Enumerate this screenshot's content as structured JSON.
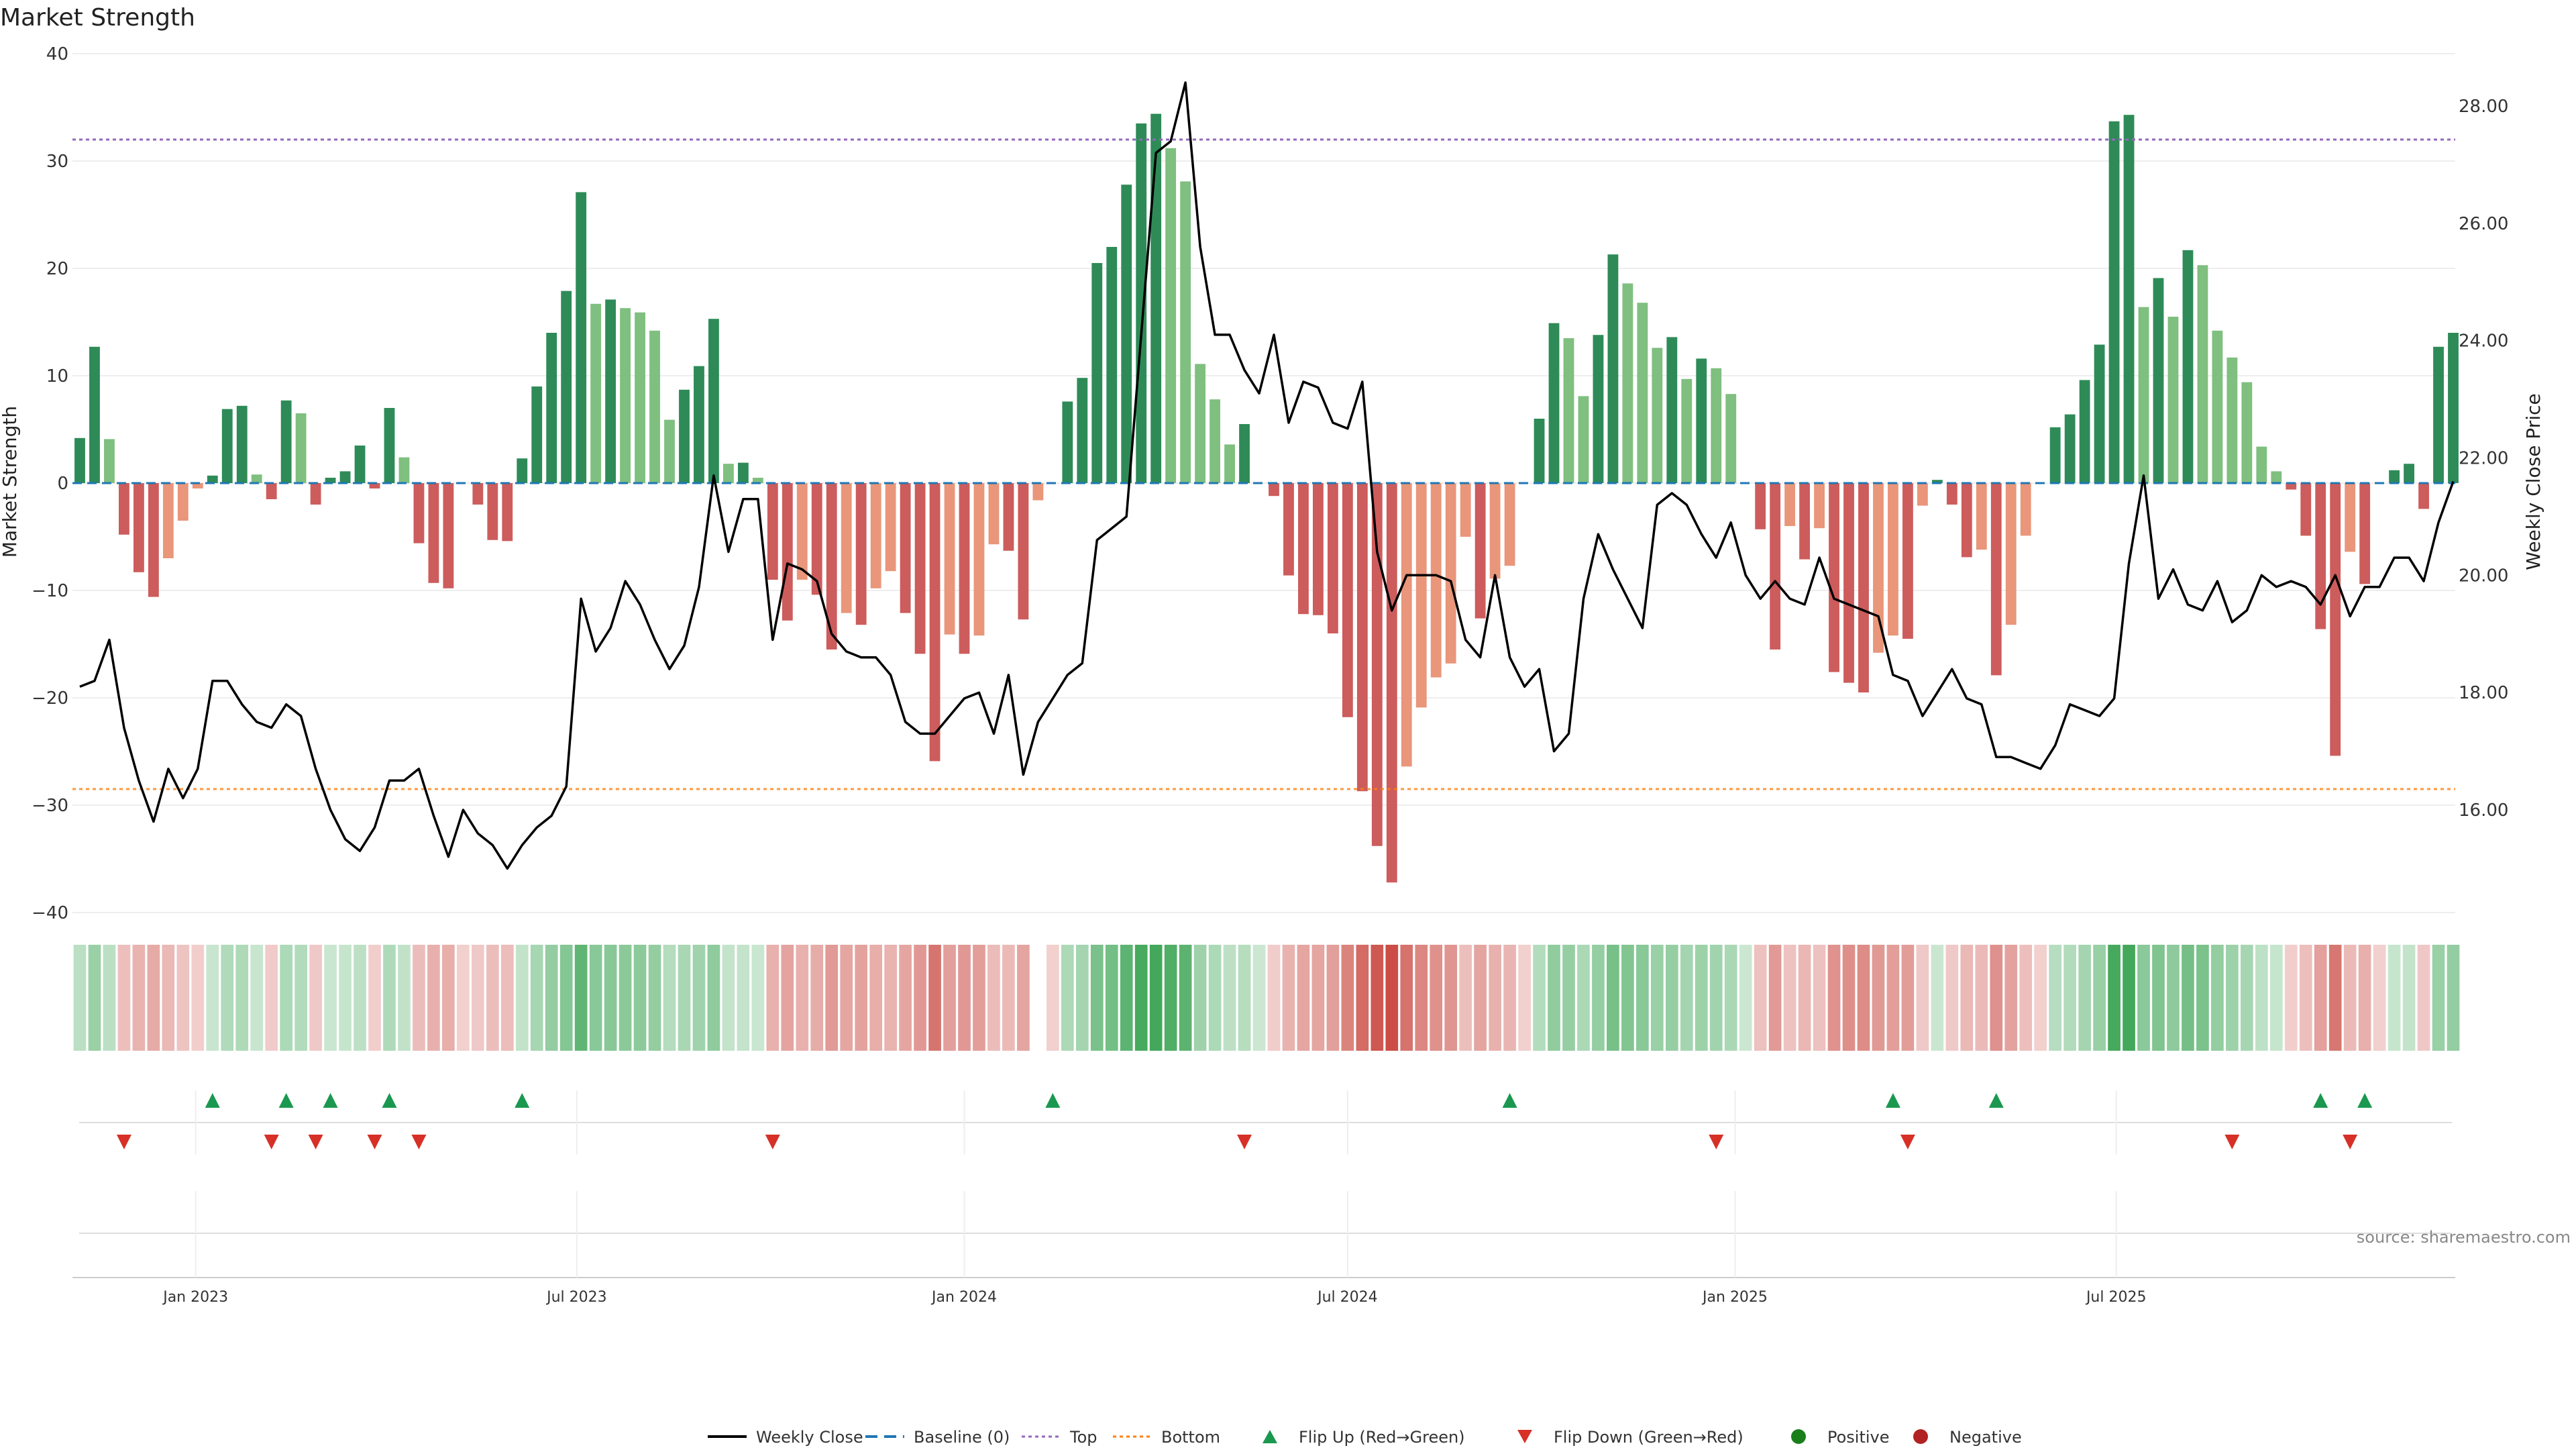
{
  "page": {
    "title": "Market Strength",
    "source": "source: sharemaestro.com"
  },
  "colors": {
    "strong_green": "#2e8b57",
    "light_green": "#7fbf7f",
    "strong_red": "#cd5c5c",
    "light_red": "#e9967a",
    "close_line": "#000000",
    "baseline": "#1f77b4",
    "top_line": "#9467bd",
    "bottom_line": "#ff7f0e",
    "flip_up": "#1a9850",
    "flip_down": "#d73027",
    "positive": "#1a7f1a",
    "negative": "#b22222"
  },
  "legend": [
    {
      "label": "Weekly Close",
      "kind": "line",
      "color": "#000000"
    },
    {
      "label": "Baseline (0)",
      "kind": "dash",
      "color": "#1f77b4"
    },
    {
      "label": "Top",
      "kind": "dot",
      "color": "#9467bd"
    },
    {
      "label": "Bottom",
      "kind": "dot",
      "color": "#ff7f0e"
    },
    {
      "label": "Flip Up (Red→Green)",
      "kind": "tri-up",
      "color": "#1a9850"
    },
    {
      "label": "Flip Down (Green→Red)",
      "kind": "tri-down",
      "color": "#d73027"
    },
    {
      "label": "Positive",
      "kind": "circle",
      "color": "#1a7f1a"
    },
    {
      "label": "Negative",
      "kind": "circle",
      "color": "#b22222"
    }
  ],
  "chart_data": {
    "type": "bar",
    "title": "Market Strength",
    "ylabel": "Market Strength",
    "y2label": "Weekly Close Price",
    "ylim": [
      -40,
      40
    ],
    "yticks": [
      40,
      30,
      20,
      10,
      0,
      -10,
      -20,
      -30,
      -40
    ],
    "y2lim": [
      14.5,
      28.6
    ],
    "y2ticks": [
      "28.00",
      "26.00",
      "24.00",
      "22.00",
      "20.00",
      "18.00",
      "16.00"
    ],
    "top_level": 32,
    "bottom_level": -28.5,
    "start_date": "2022-11-07",
    "xticks": [
      "Jan 2023",
      "Jul 2023",
      "Jan 2024",
      "Jul 2024",
      "Jan 2025",
      "Jul 2025"
    ],
    "xtick_dates": [
      "2023-01-01",
      "2023-07-01",
      "2024-01-01",
      "2024-07-01",
      "2025-01-01",
      "2025-07-01"
    ],
    "strength": [
      4.2,
      12.7,
      4.1,
      -4.8,
      -8.3,
      -10.6,
      -7.0,
      -3.5,
      -0.5,
      0.7,
      6.9,
      7.2,
      0.8,
      -1.5,
      7.7,
      6.5,
      -2.0,
      0.5,
      1.1,
      3.5,
      -0.5,
      7.0,
      2.4,
      -5.6,
      -9.3,
      -9.8,
      0,
      -2.0,
      -5.3,
      -5.4,
      2.3,
      9.0,
      14.0,
      17.9,
      27.1,
      16.7,
      17.1,
      16.3,
      15.9,
      14.2,
      5.9,
      8.7,
      10.9,
      15.3,
      1.8,
      1.9,
      0.5,
      -9.0,
      -12.8,
      -9.0,
      -10.4,
      -15.5,
      -12.1,
      -13.2,
      -9.8,
      -8.2,
      -12.1,
      -15.9,
      -25.9,
      -14.1,
      -15.9,
      -14.2,
      -5.7,
      -6.3,
      -12.7,
      -1.6,
      0,
      7.6,
      9.8,
      20.5,
      22.0,
      27.8,
      33.5,
      34.4,
      31.2,
      28.1,
      11.1,
      7.8,
      3.6,
      5.5,
      0,
      -1.2,
      -8.6,
      -12.2,
      -12.3,
      -14.0,
      -21.8,
      -28.7,
      -33.8,
      -37.2,
      -26.4,
      -20.9,
      -18.1,
      -16.8,
      -5.0,
      -12.6,
      -8.9,
      -7.7,
      0,
      6.0,
      14.9,
      13.5,
      8.1,
      13.8,
      21.3,
      18.6,
      16.8,
      12.6,
      13.6,
      9.7,
      11.6,
      10.7,
      8.3,
      0,
      -4.3,
      -15.5,
      -4.0,
      -7.1,
      -4.2,
      -17.6,
      -18.6,
      -19.5,
      -15.8,
      -14.2,
      -14.5,
      -2.1,
      0.3,
      -2.0,
      -6.9,
      -6.2,
      -17.9,
      -13.2,
      -4.9,
      0,
      5.2,
      6.4,
      9.6,
      12.9,
      33.7,
      34.3,
      16.4,
      19.1,
      15.5,
      21.7,
      20.3,
      14.2,
      11.7,
      9.4,
      3.4,
      1.1,
      -0.6,
      -4.9,
      -13.6,
      -25.4,
      -6.4,
      -9.4,
      0,
      1.2,
      1.8,
      -2.4,
      12.7,
      14.0
    ],
    "weekly_close": [
      18.1,
      18.2,
      18.9,
      17.4,
      16.5,
      15.8,
      16.7,
      16.2,
      16.7,
      18.2,
      18.2,
      17.8,
      17.5,
      17.4,
      17.8,
      17.6,
      16.7,
      16.0,
      15.5,
      15.3,
      15.7,
      16.5,
      16.5,
      16.7,
      15.9,
      15.2,
      16.0,
      15.6,
      15.4,
      15.0,
      15.4,
      15.7,
      15.9,
      16.4,
      19.6,
      18.7,
      19.1,
      19.9,
      19.5,
      18.9,
      18.4,
      18.8,
      19.8,
      21.7,
      20.4,
      21.3,
      21.3,
      18.9,
      20.2,
      20.1,
      19.9,
      19.0,
      18.7,
      18.6,
      18.6,
      18.3,
      17.5,
      17.3,
      17.3,
      17.6,
      17.9,
      18.0,
      17.3,
      18.3,
      16.6,
      17.5,
      17.9,
      18.3,
      18.5,
      20.6,
      20.8,
      21.0,
      24.1,
      27.2,
      27.4,
      28.4,
      25.6,
      24.1,
      24.1,
      23.5,
      23.1,
      24.1,
      22.6,
      23.3,
      23.2,
      22.6,
      22.5,
      23.3,
      20.4,
      19.4,
      20.0,
      20.0,
      20.0,
      19.9,
      18.9,
      18.6,
      20.0,
      18.6,
      18.1,
      18.4,
      17.0,
      17.3,
      19.6,
      20.7,
      20.1,
      19.6,
      19.1,
      21.2,
      21.4,
      21.2,
      20.7,
      20.3,
      20.9,
      20.0,
      19.6,
      19.9,
      19.6,
      19.5,
      20.3,
      19.6,
      19.5,
      19.4,
      19.3,
      18.3,
      18.2,
      17.6,
      18.0,
      18.4,
      17.9,
      17.8,
      16.9,
      16.9,
      16.8,
      16.7,
      17.1,
      17.8,
      17.7,
      17.6,
      17.9,
      20.2,
      21.7,
      19.6,
      20.1,
      19.5,
      19.4,
      19.9,
      19.2,
      19.4,
      20.0,
      19.8,
      19.9,
      19.8,
      19.5,
      20.0,
      19.3,
      19.8,
      19.8,
      20.3,
      20.3,
      19.9,
      20.9,
      21.6
    ],
    "flip_up_weeks": [
      9,
      14,
      17,
      21,
      30,
      66,
      97,
      123,
      130,
      152,
      155
    ],
    "flip_down_weeks": [
      3,
      13,
      16,
      20,
      23,
      47,
      79,
      111,
      124,
      146,
      154
    ],
    "heat_gap_weeks": [
      65
    ]
  }
}
